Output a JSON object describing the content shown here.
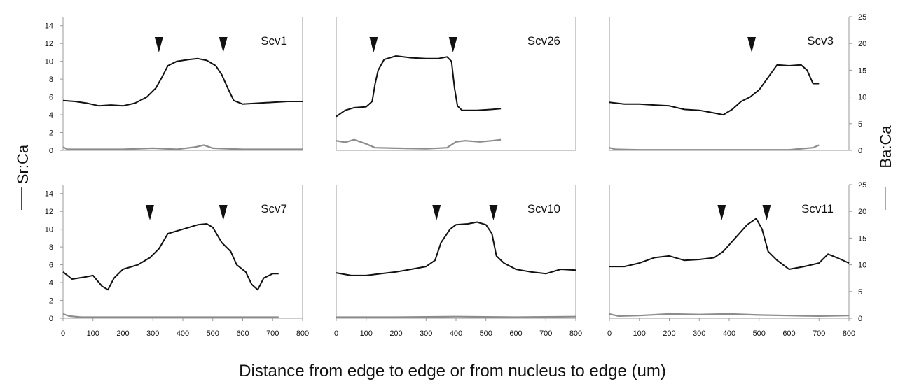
{
  "chart_data": {
    "type": "line",
    "xlabel": "Distance from edge to edge or from nucleus to edge (um)",
    "ylabel_left": "Sr:Ca",
    "ylabel_right": "Ba:Ca",
    "left_legend_mark": "—",
    "right_legend_mark": "—",
    "xlim": [
      0,
      800
    ],
    "x_ticks": [
      0,
      100,
      200,
      300,
      400,
      500,
      600,
      700,
      800
    ],
    "ylim_left": [
      0,
      15
    ],
    "y_ticks_left": [
      0,
      2,
      4,
      6,
      8,
      10,
      12,
      14
    ],
    "ylim_right": [
      0,
      25
    ],
    "y_ticks_right": [
      0,
      5,
      10,
      15,
      20,
      25
    ],
    "grid": false,
    "colors": {
      "sr_ca": "#111111",
      "ba_ca": "#8c8c8c"
    },
    "panels": [
      {
        "label": "Scv1",
        "markers_x": [
          320,
          535
        ],
        "series": [
          {
            "axis": "left",
            "values": [
              [
                0,
                5.6
              ],
              [
                40,
                5.5
              ],
              [
                80,
                5.3
              ],
              [
                120,
                5.0
              ],
              [
                160,
                5.1
              ],
              [
                200,
                5.0
              ],
              [
                240,
                5.3
              ],
              [
                280,
                6.0
              ],
              [
                310,
                7.0
              ],
              [
                330,
                8.2
              ],
              [
                350,
                9.5
              ],
              [
                380,
                10.0
              ],
              [
                420,
                10.2
              ],
              [
                450,
                10.3
              ],
              [
                480,
                10.1
              ],
              [
                510,
                9.5
              ],
              [
                530,
                8.5
              ],
              [
                550,
                7.0
              ],
              [
                570,
                5.6
              ],
              [
                600,
                5.2
              ],
              [
                650,
                5.3
              ],
              [
                700,
                5.4
              ],
              [
                750,
                5.5
              ],
              [
                800,
                5.5
              ]
            ]
          },
          {
            "axis": "right",
            "values": [
              [
                0,
                0.6
              ],
              [
                15,
                0.2
              ],
              [
                100,
                0.2
              ],
              [
                200,
                0.2
              ],
              [
                300,
                0.4
              ],
              [
                380,
                0.2
              ],
              [
                440,
                0.6
              ],
              [
                470,
                1.0
              ],
              [
                500,
                0.4
              ],
              [
                600,
                0.2
              ],
              [
                700,
                0.2
              ],
              [
                800,
                0.2
              ]
            ]
          }
        ]
      },
      {
        "label": "Scv26",
        "markers_x": [
          125,
          390
        ],
        "series": [
          {
            "axis": "left",
            "values": [
              [
                0,
                3.8
              ],
              [
                30,
                4.5
              ],
              [
                60,
                4.8
              ],
              [
                100,
                4.9
              ],
              [
                120,
                5.5
              ],
              [
                130,
                7.5
              ],
              [
                140,
                9.0
              ],
              [
                160,
                10.2
              ],
              [
                200,
                10.6
              ],
              [
                250,
                10.4
              ],
              [
                300,
                10.3
              ],
              [
                340,
                10.3
              ],
              [
                370,
                10.5
              ],
              [
                385,
                10.0
              ],
              [
                395,
                7.0
              ],
              [
                405,
                5.0
              ],
              [
                420,
                4.5
              ],
              [
                470,
                4.5
              ],
              [
                520,
                4.6
              ],
              [
                550,
                4.7
              ]
            ]
          },
          {
            "axis": "right",
            "values": [
              [
                0,
                1.8
              ],
              [
                30,
                1.5
              ],
              [
                60,
                2.0
              ],
              [
                100,
                1.2
              ],
              [
                130,
                0.5
              ],
              [
                200,
                0.4
              ],
              [
                300,
                0.3
              ],
              [
                370,
                0.5
              ],
              [
                400,
                1.6
              ],
              [
                430,
                1.8
              ],
              [
                480,
                1.6
              ],
              [
                520,
                1.8
              ],
              [
                550,
                2.0
              ]
            ]
          }
        ]
      },
      {
        "label": "Scv3",
        "markers_x": [
          475
        ],
        "series": [
          {
            "axis": "left",
            "values": [
              [
                0,
                5.4
              ],
              [
                50,
                5.2
              ],
              [
                100,
                5.2
              ],
              [
                150,
                5.1
              ],
              [
                200,
                5.0
              ],
              [
                250,
                4.6
              ],
              [
                300,
                4.5
              ],
              [
                350,
                4.2
              ],
              [
                380,
                4.0
              ],
              [
                410,
                4.6
              ],
              [
                440,
                5.5
              ],
              [
                470,
                6.0
              ],
              [
                500,
                6.8
              ],
              [
                530,
                8.2
              ],
              [
                560,
                9.6
              ],
              [
                600,
                9.5
              ],
              [
                640,
                9.6
              ],
              [
                660,
                9.0
              ],
              [
                680,
                7.5
              ],
              [
                700,
                7.5
              ]
            ]
          },
          {
            "axis": "right",
            "values": [
              [
                0,
                0.5
              ],
              [
                20,
                0.2
              ],
              [
                100,
                0.1
              ],
              [
                300,
                0.1
              ],
              [
                500,
                0.1
              ],
              [
                600,
                0.1
              ],
              [
                680,
                0.5
              ],
              [
                700,
                1.0
              ]
            ]
          }
        ]
      },
      {
        "label": "Scv7",
        "markers_x": [
          290,
          535
        ],
        "series": [
          {
            "axis": "left",
            "values": [
              [
                0,
                5.2
              ],
              [
                30,
                4.4
              ],
              [
                70,
                4.6
              ],
              [
                100,
                4.8
              ],
              [
                130,
                3.6
              ],
              [
                150,
                3.2
              ],
              [
                170,
                4.5
              ],
              [
                200,
                5.5
              ],
              [
                250,
                6.0
              ],
              [
                290,
                6.8
              ],
              [
                320,
                7.8
              ],
              [
                350,
                9.5
              ],
              [
                400,
                10.0
              ],
              [
                450,
                10.5
              ],
              [
                480,
                10.6
              ],
              [
                500,
                10.2
              ],
              [
                530,
                8.5
              ],
              [
                560,
                7.5
              ],
              [
                580,
                6.0
              ],
              [
                610,
                5.2
              ],
              [
                630,
                3.8
              ],
              [
                650,
                3.2
              ],
              [
                670,
                4.5
              ],
              [
                700,
                5.0
              ],
              [
                720,
                5.0
              ]
            ]
          },
          {
            "axis": "right",
            "values": [
              [
                0,
                0.8
              ],
              [
                20,
                0.4
              ],
              [
                60,
                0.2
              ],
              [
                200,
                0.2
              ],
              [
                400,
                0.2
              ],
              [
                600,
                0.2
              ],
              [
                720,
                0.2
              ]
            ]
          }
        ]
      },
      {
        "label": "Scv10",
        "markers_x": [
          335,
          525
        ],
        "series": [
          {
            "axis": "left",
            "values": [
              [
                0,
                5.1
              ],
              [
                50,
                4.8
              ],
              [
                100,
                4.8
              ],
              [
                150,
                5.0
              ],
              [
                200,
                5.2
              ],
              [
                250,
                5.5
              ],
              [
                300,
                5.8
              ],
              [
                330,
                6.5
              ],
              [
                350,
                8.5
              ],
              [
                380,
                10.0
              ],
              [
                400,
                10.5
              ],
              [
                440,
                10.6
              ],
              [
                470,
                10.8
              ],
              [
                500,
                10.5
              ],
              [
                520,
                9.5
              ],
              [
                535,
                7.0
              ],
              [
                560,
                6.2
              ],
              [
                600,
                5.5
              ],
              [
                650,
                5.2
              ],
              [
                700,
                5.0
              ],
              [
                750,
                5.5
              ],
              [
                800,
                5.4
              ]
            ]
          },
          {
            "axis": "right",
            "values": [
              [
                0,
                0.2
              ],
              [
                200,
                0.2
              ],
              [
                400,
                0.3
              ],
              [
                600,
                0.2
              ],
              [
                800,
                0.3
              ]
            ]
          }
        ]
      },
      {
        "label": "Scv11",
        "markers_x": [
          375,
          525
        ],
        "series": [
          {
            "axis": "left",
            "values": [
              [
                0,
                5.8
              ],
              [
                50,
                5.8
              ],
              [
                100,
                6.2
              ],
              [
                150,
                6.8
              ],
              [
                200,
                7.0
              ],
              [
                250,
                6.5
              ],
              [
                300,
                6.6
              ],
              [
                350,
                6.8
              ],
              [
                380,
                7.5
              ],
              [
                420,
                9.0
              ],
              [
                460,
                10.5
              ],
              [
                490,
                11.2
              ],
              [
                510,
                10.0
              ],
              [
                530,
                7.5
              ],
              [
                560,
                6.5
              ],
              [
                600,
                5.5
              ],
              [
                650,
                5.8
              ],
              [
                700,
                6.2
              ],
              [
                730,
                7.2
              ],
              [
                760,
                6.8
              ],
              [
                800,
                6.2
              ]
            ]
          },
          {
            "axis": "right",
            "values": [
              [
                0,
                0.8
              ],
              [
                30,
                0.4
              ],
              [
                100,
                0.5
              ],
              [
                200,
                0.8
              ],
              [
                300,
                0.7
              ],
              [
                400,
                0.8
              ],
              [
                500,
                0.6
              ],
              [
                600,
                0.5
              ],
              [
                700,
                0.4
              ],
              [
                800,
                0.5
              ]
            ]
          }
        ]
      }
    ]
  }
}
